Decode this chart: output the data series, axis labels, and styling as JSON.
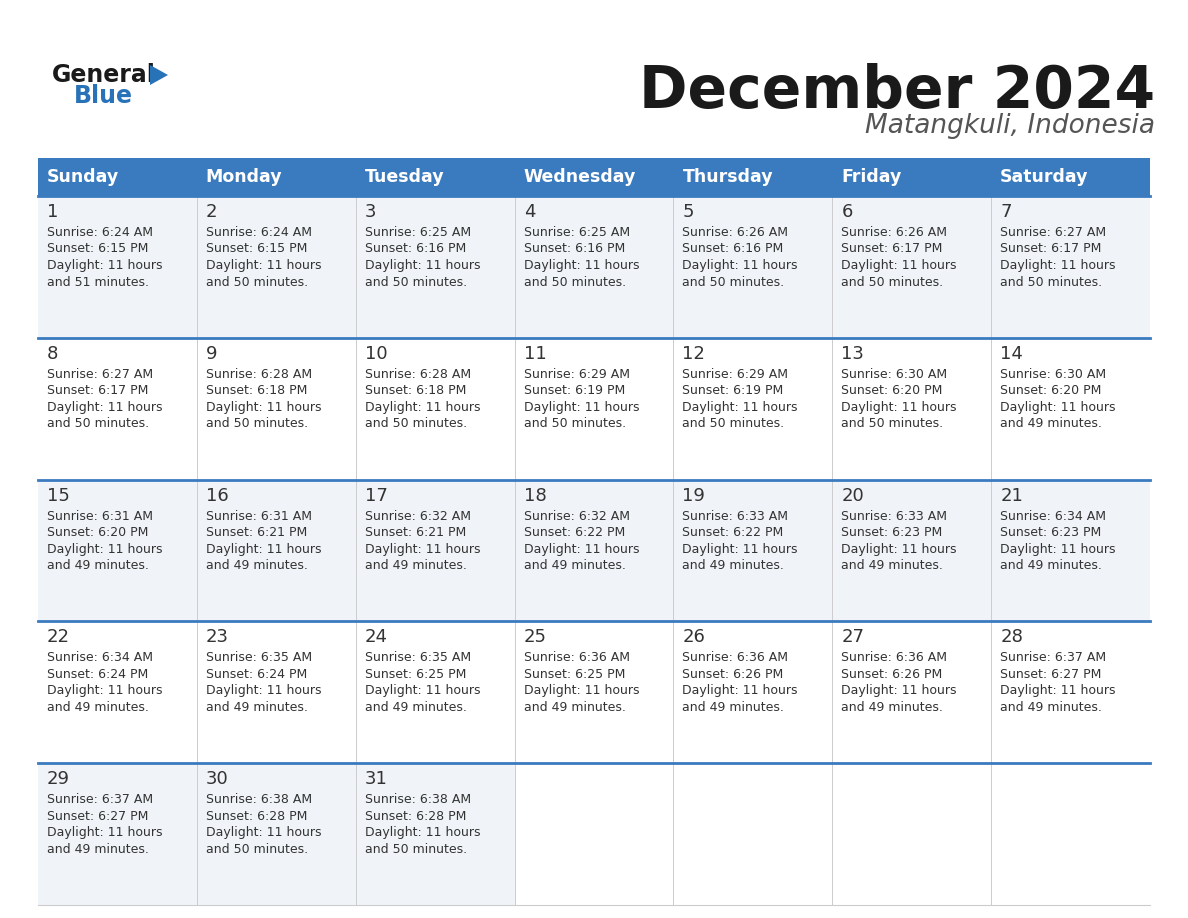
{
  "title": "December 2024",
  "subtitle": "Matangkuli, Indonesia",
  "header_bg_color": "#3a7abf",
  "header_text_color": "#ffffff",
  "days_of_week": [
    "Sunday",
    "Monday",
    "Tuesday",
    "Wednesday",
    "Thursday",
    "Friday",
    "Saturday"
  ],
  "calendar_data": [
    [
      {
        "day": "1",
        "sunrise": "6:24 AM",
        "sunset": "6:15 PM",
        "daylight_mins": "51"
      },
      {
        "day": "2",
        "sunrise": "6:24 AM",
        "sunset": "6:15 PM",
        "daylight_mins": "50"
      },
      {
        "day": "3",
        "sunrise": "6:25 AM",
        "sunset": "6:16 PM",
        "daylight_mins": "50"
      },
      {
        "day": "4",
        "sunrise": "6:25 AM",
        "sunset": "6:16 PM",
        "daylight_mins": "50"
      },
      {
        "day": "5",
        "sunrise": "6:26 AM",
        "sunset": "6:16 PM",
        "daylight_mins": "50"
      },
      {
        "day": "6",
        "sunrise": "6:26 AM",
        "sunset": "6:17 PM",
        "daylight_mins": "50"
      },
      {
        "day": "7",
        "sunrise": "6:27 AM",
        "sunset": "6:17 PM",
        "daylight_mins": "50"
      }
    ],
    [
      {
        "day": "8",
        "sunrise": "6:27 AM",
        "sunset": "6:17 PM",
        "daylight_mins": "50"
      },
      {
        "day": "9",
        "sunrise": "6:28 AM",
        "sunset": "6:18 PM",
        "daylight_mins": "50"
      },
      {
        "day": "10",
        "sunrise": "6:28 AM",
        "sunset": "6:18 PM",
        "daylight_mins": "50"
      },
      {
        "day": "11",
        "sunrise": "6:29 AM",
        "sunset": "6:19 PM",
        "daylight_mins": "50"
      },
      {
        "day": "12",
        "sunrise": "6:29 AM",
        "sunset": "6:19 PM",
        "daylight_mins": "50"
      },
      {
        "day": "13",
        "sunrise": "6:30 AM",
        "sunset": "6:20 PM",
        "daylight_mins": "50"
      },
      {
        "day": "14",
        "sunrise": "6:30 AM",
        "sunset": "6:20 PM",
        "daylight_mins": "49"
      }
    ],
    [
      {
        "day": "15",
        "sunrise": "6:31 AM",
        "sunset": "6:20 PM",
        "daylight_mins": "49"
      },
      {
        "day": "16",
        "sunrise": "6:31 AM",
        "sunset": "6:21 PM",
        "daylight_mins": "49"
      },
      {
        "day": "17",
        "sunrise": "6:32 AM",
        "sunset": "6:21 PM",
        "daylight_mins": "49"
      },
      {
        "day": "18",
        "sunrise": "6:32 AM",
        "sunset": "6:22 PM",
        "daylight_mins": "49"
      },
      {
        "day": "19",
        "sunrise": "6:33 AM",
        "sunset": "6:22 PM",
        "daylight_mins": "49"
      },
      {
        "day": "20",
        "sunrise": "6:33 AM",
        "sunset": "6:23 PM",
        "daylight_mins": "49"
      },
      {
        "day": "21",
        "sunrise": "6:34 AM",
        "sunset": "6:23 PM",
        "daylight_mins": "49"
      }
    ],
    [
      {
        "day": "22",
        "sunrise": "6:34 AM",
        "sunset": "6:24 PM",
        "daylight_mins": "49"
      },
      {
        "day": "23",
        "sunrise": "6:35 AM",
        "sunset": "6:24 PM",
        "daylight_mins": "49"
      },
      {
        "day": "24",
        "sunrise": "6:35 AM",
        "sunset": "6:25 PM",
        "daylight_mins": "49"
      },
      {
        "day": "25",
        "sunrise": "6:36 AM",
        "sunset": "6:25 PM",
        "daylight_mins": "49"
      },
      {
        "day": "26",
        "sunrise": "6:36 AM",
        "sunset": "6:26 PM",
        "daylight_mins": "49"
      },
      {
        "day": "27",
        "sunrise": "6:36 AM",
        "sunset": "6:26 PM",
        "daylight_mins": "49"
      },
      {
        "day": "28",
        "sunrise": "6:37 AM",
        "sunset": "6:27 PM",
        "daylight_mins": "49"
      }
    ],
    [
      {
        "day": "29",
        "sunrise": "6:37 AM",
        "sunset": "6:27 PM",
        "daylight_mins": "49"
      },
      {
        "day": "30",
        "sunrise": "6:38 AM",
        "sunset": "6:28 PM",
        "daylight_mins": "50"
      },
      {
        "day": "31",
        "sunrise": "6:38 AM",
        "sunset": "6:28 PM",
        "daylight_mins": "50"
      },
      null,
      null,
      null,
      null
    ]
  ],
  "logo_color_general": "#1a1a1a",
  "logo_color_blue": "#2872b8",
  "logo_triangle_color": "#2872b8",
  "title_color": "#1a1a1a",
  "subtitle_color": "#555555",
  "divider_color": "#3a7abf",
  "cell_text_color": "#333333",
  "cell_day_color": "#333333",
  "bg_color_odd": "#f0f4f8",
  "bg_color_even": "#ffffff",
  "empty_cell_color": "#ffffff",
  "grid_line_color": "#cccccc"
}
